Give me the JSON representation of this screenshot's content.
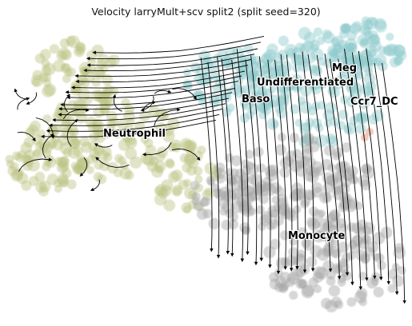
{
  "title": "Velocity larryMult+scv split2 (split seed=320)",
  "colors": {
    "neutrophil": "#bcc383",
    "undifferentiated": "#8ec9cc",
    "monocyte": "#a7a7a7",
    "meg": "#8fc6cf",
    "ccr7_dc": "#e79a86",
    "streamline": "#000000"
  },
  "clusters": [
    {
      "id": "neutrophil",
      "label": "Neutrophil"
    },
    {
      "id": "undifferentiated",
      "label": "Undifferentiated"
    },
    {
      "id": "baso",
      "label": "Baso"
    },
    {
      "id": "meg",
      "label": "Meg"
    },
    {
      "id": "ccr7_dc",
      "label": "Ccr7_DC"
    },
    {
      "id": "monocyte",
      "label": "Monocyte"
    }
  ]
}
